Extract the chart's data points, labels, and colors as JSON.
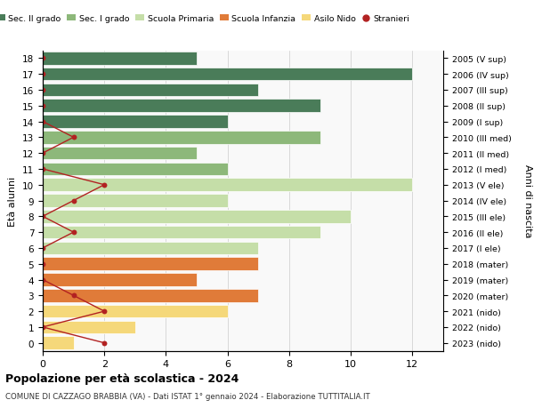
{
  "ages": [
    18,
    17,
    16,
    15,
    14,
    13,
    12,
    11,
    10,
    9,
    8,
    7,
    6,
    5,
    4,
    3,
    2,
    1,
    0
  ],
  "years": [
    "2005 (V sup)",
    "2006 (IV sup)",
    "2007 (III sup)",
    "2008 (II sup)",
    "2009 (I sup)",
    "2010 (III med)",
    "2011 (II med)",
    "2012 (I med)",
    "2013 (V ele)",
    "2014 (IV ele)",
    "2015 (III ele)",
    "2016 (II ele)",
    "2017 (I ele)",
    "2018 (mater)",
    "2019 (mater)",
    "2020 (mater)",
    "2021 (nido)",
    "2022 (nido)",
    "2023 (nido)"
  ],
  "bar_values": [
    5,
    12,
    7,
    9,
    6,
    9,
    5,
    6,
    12,
    6,
    10,
    9,
    7,
    7,
    5,
    7,
    6,
    3,
    1
  ],
  "stranieri_vals": [
    0,
    0,
    0,
    0,
    0,
    1,
    0,
    0,
    2,
    1,
    0,
    1,
    0,
    0,
    0,
    1,
    2,
    0,
    2
  ],
  "bar_colors": [
    "#4a7c59",
    "#4a7c59",
    "#4a7c59",
    "#4a7c59",
    "#4a7c59",
    "#8db87a",
    "#8db87a",
    "#8db87a",
    "#c5dea8",
    "#c5dea8",
    "#c5dea8",
    "#c5dea8",
    "#c5dea8",
    "#e07b39",
    "#e07b39",
    "#e07b39",
    "#f5d87a",
    "#f5d87a",
    "#f5d87a"
  ],
  "legend_labels": [
    "Sec. II grado",
    "Sec. I grado",
    "Scuola Primaria",
    "Scuola Infanzia",
    "Asilo Nido",
    "Stranieri"
  ],
  "legend_colors": [
    "#4a7c59",
    "#8db87a",
    "#c5dea8",
    "#e07b39",
    "#f5d87a",
    "#b22222"
  ],
  "ylabel_left": "Età alunni",
  "ylabel_right": "Anni di nascita",
  "title": "Popolazione per età scolastica - 2024",
  "subtitle": "COMUNE DI CAZZAGO BRABBIA (VA) - Dati ISTAT 1° gennaio 2024 - Elaborazione TUTTITALIA.IT",
  "xlim": [
    0,
    13
  ],
  "stranieri_color": "#b22222",
  "grid_color": "#cccccc",
  "bg_color": "#f9f9f9"
}
